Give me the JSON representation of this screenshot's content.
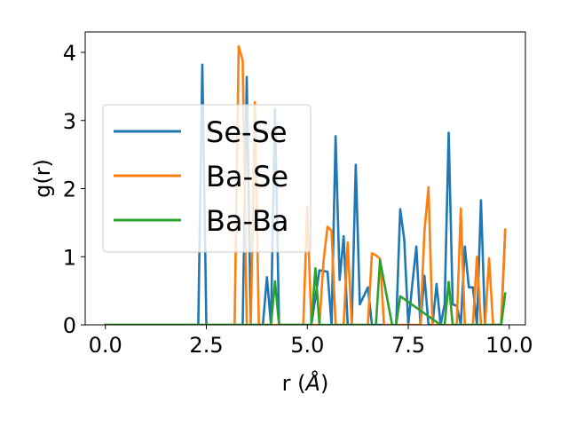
{
  "chart_data": {
    "type": "line",
    "xlabel": "r (",
    "xlabel_unit": "Å",
    "xlabel_close": ")",
    "ylabel": "g(r)",
    "xlim": [
      -0.5,
      10.4
    ],
    "ylim": [
      0,
      4.3
    ],
    "xticks": [
      0.0,
      2.5,
      5.0,
      7.5,
      10.0
    ],
    "xtick_labels": [
      "0.0",
      "2.5",
      "5.0",
      "7.5",
      "10.0"
    ],
    "yticks": [
      0,
      1,
      2,
      3,
      4
    ],
    "ytick_labels": [
      "0",
      "1",
      "2",
      "3",
      "4"
    ],
    "grid": false,
    "legend_position": "center-left",
    "series": [
      {
        "name": "Se-Se",
        "color": "#1f77b4",
        "x": [
          0.0,
          2.3,
          2.4,
          2.5,
          3.4,
          3.5,
          3.6,
          3.9,
          4.0,
          4.1,
          4.2,
          4.3,
          5.1,
          5.3,
          5.5,
          5.6,
          5.7,
          5.8,
          5.9,
          6.0,
          6.1,
          6.2,
          6.3,
          6.5,
          6.6,
          6.7,
          6.8,
          7.2,
          7.3,
          7.4,
          7.5,
          7.6,
          7.7,
          7.8,
          7.9,
          8.0,
          8.1,
          8.2,
          8.3,
          8.4,
          8.5,
          8.6,
          8.7,
          8.8,
          8.9,
          9.0,
          9.1,
          9.2,
          9.3,
          9.4,
          9.5,
          9.6,
          9.8,
          9.9
        ],
        "y": [
          0.0,
          0.0,
          3.82,
          0.0,
          0.0,
          3.64,
          0.0,
          0.0,
          0.7,
          0.0,
          3.17,
          0.0,
          0.0,
          0.8,
          0.78,
          0.0,
          2.77,
          0.66,
          1.3,
          0.0,
          0.0,
          2.35,
          0.3,
          0.55,
          0.0,
          0.0,
          0.0,
          0.0,
          1.7,
          1.25,
          0.0,
          0.6,
          1.15,
          0.0,
          0.72,
          0.0,
          0.0,
          0.6,
          0.0,
          0.3,
          2.82,
          0.3,
          0.28,
          0.0,
          1.15,
          0.55,
          0.55,
          0.0,
          1.83,
          0.0,
          0.0,
          0.0,
          0.0,
          1.38
        ]
      },
      {
        "name": "Ba-Se",
        "color": "#ff7f0e",
        "x": [
          0.0,
          3.2,
          3.3,
          3.4,
          3.5,
          3.6,
          3.7,
          3.8,
          4.9,
          5.0,
          5.1,
          5.3,
          5.4,
          5.5,
          5.6,
          5.7,
          5.8,
          5.9,
          6.0,
          6.1,
          6.2,
          6.4,
          6.5,
          6.6,
          6.7,
          6.8,
          6.9,
          7.8,
          7.9,
          8.0,
          8.1,
          8.2,
          8.3,
          8.4,
          8.5,
          8.6,
          8.7,
          8.8,
          8.9,
          9.0,
          9.1,
          9.2,
          9.3,
          9.4,
          9.5,
          9.6,
          9.7,
          9.8,
          9.9
        ],
        "y": [
          0.0,
          0.0,
          4.09,
          3.88,
          0.0,
          0.0,
          3.27,
          0.0,
          0.0,
          1.73,
          0.0,
          0.0,
          0.93,
          1.44,
          1.38,
          0.0,
          0.0,
          0.0,
          1.21,
          0.0,
          0.0,
          0.0,
          0.0,
          1.05,
          1.02,
          0.97,
          0.0,
          0.0,
          1.37,
          2.02,
          0.0,
          0.0,
          0.0,
          0.0,
          0.0,
          0.0,
          0.0,
          1.71,
          0.0,
          0.0,
          0.0,
          1.0,
          0.0,
          0.0,
          0.98,
          0.0,
          0.0,
          0.0,
          1.4
        ]
      },
      {
        "name": "Ba-Ba",
        "color": "#2ca02c",
        "x": [
          0.0,
          4.0,
          4.1,
          4.2,
          4.3,
          5.0,
          5.1,
          5.2,
          5.3,
          6.6,
          6.7,
          6.8,
          7.1,
          7.2,
          7.3,
          8.3,
          8.4,
          8.5,
          8.6,
          9.8,
          9.9
        ],
        "y": [
          0.0,
          0.0,
          0.0,
          0.64,
          0.0,
          0.0,
          0.0,
          0.83,
          0.0,
          0.0,
          0.0,
          0.95,
          0.0,
          0.0,
          0.42,
          0.0,
          0.0,
          0.63,
          0.0,
          0.0,
          0.46
        ]
      }
    ]
  }
}
